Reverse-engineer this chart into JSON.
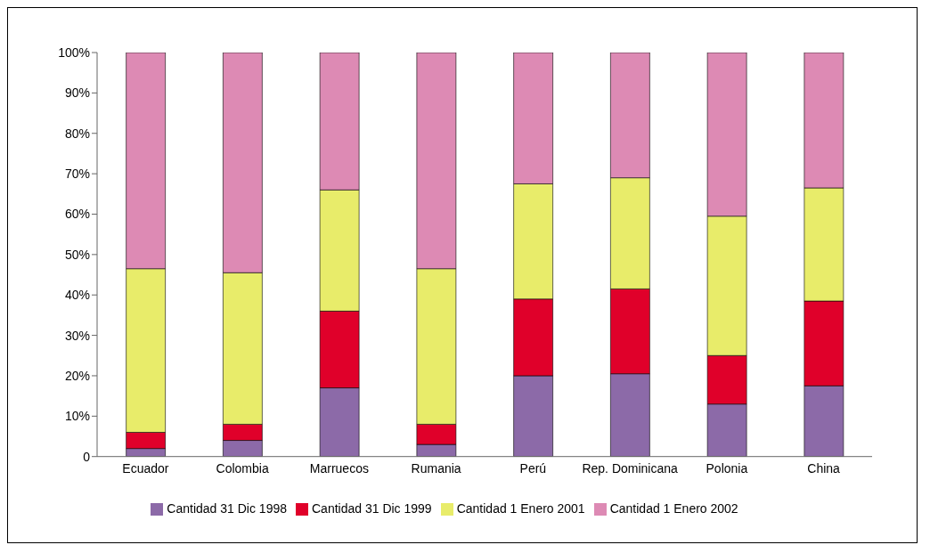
{
  "chart_data": {
    "type": "bar",
    "stacked": true,
    "categories": [
      "Ecuador",
      "Colombia",
      "Marruecos",
      "Rumania",
      "Perú",
      "Rep. Dominicana",
      "Polonia",
      "China"
    ],
    "series": [
      {
        "name": "Cantidad 31 Dic 1998",
        "color": "#8c6aa8",
        "values": [
          2,
          4,
          17,
          3,
          20,
          20.5,
          13,
          17.5
        ]
      },
      {
        "name": "Cantidad 31 Dic 1999",
        "color": "#e0002a",
        "values": [
          4,
          4,
          19,
          5,
          19,
          21,
          12,
          21
        ]
      },
      {
        "name": "Cantidad 1 Enero 2001",
        "color": "#e8ec6a",
        "values": [
          40.5,
          37.5,
          30,
          38.5,
          28.5,
          27.5,
          34.5,
          28
        ]
      },
      {
        "name": "Cantidad 1 Enero 2002",
        "color": "#dd8ab4",
        "values": [
          53.5,
          54.5,
          34,
          53.5,
          32.5,
          31,
          40.5,
          33.5
        ]
      }
    ],
    "ylim": [
      0,
      100
    ],
    "yticks": [
      {
        "value": 0,
        "label": "0"
      },
      {
        "value": 10,
        "label": "10%"
      },
      {
        "value": 20,
        "label": "20%"
      },
      {
        "value": 30,
        "label": "30%"
      },
      {
        "value": 40,
        "label": "40%"
      },
      {
        "value": 50,
        "label": "50%"
      },
      {
        "value": 60,
        "label": "60%"
      },
      {
        "value": 70,
        "label": "70%"
      },
      {
        "value": 80,
        "label": "80%"
      },
      {
        "value": 90,
        "label": "90%"
      },
      {
        "value": 100,
        "label": "100%"
      }
    ],
    "grid": false,
    "legend": "bottom"
  }
}
